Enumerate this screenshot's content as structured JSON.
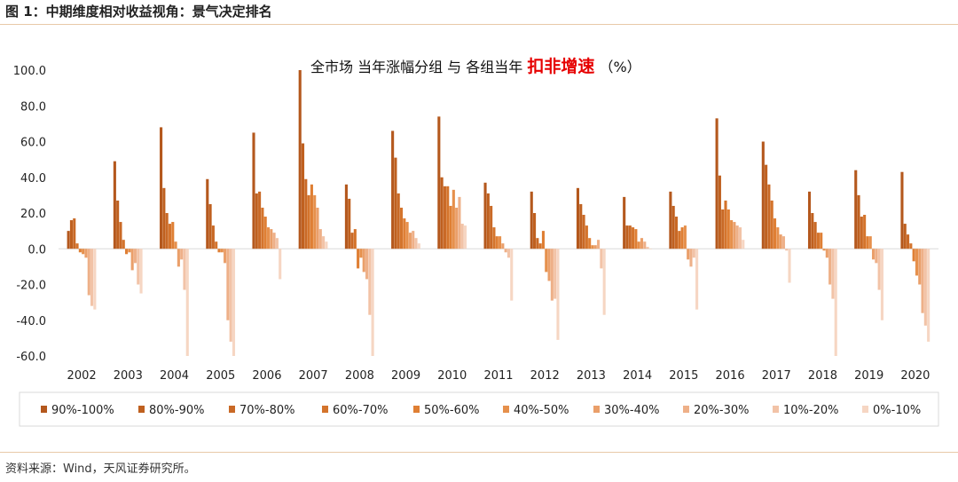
{
  "figure_title": "图 1：中期维度相对收益视角：景气决定排名",
  "source_note": "资料来源：Wind，天风证券研究所。",
  "subtitle": {
    "part1": "全市场  当年涨幅分组  与  各组当年",
    "highlight": "扣非增速",
    "part2": "（%）",
    "highlight_color": "#e60000"
  },
  "chart_data": {
    "type": "bar",
    "categories": [
      "2002",
      "2003",
      "2004",
      "2005",
      "2006",
      "2007",
      "2008",
      "2009",
      "2010",
      "2011",
      "2012",
      "2013",
      "2014",
      "2015",
      "2016",
      "2017",
      "2018",
      "2019",
      "2020"
    ],
    "ylim": [
      -60,
      100
    ],
    "yticks": [
      "100.0",
      "80.0",
      "60.0",
      "40.0",
      "20.0",
      "0.0",
      "-20.0",
      "-40.0",
      "-60.0"
    ],
    "ytick_values": [
      100,
      80,
      60,
      40,
      20,
      0,
      -20,
      -40,
      -60
    ],
    "series": [
      {
        "name": "90%-100%",
        "color": "#b4581d",
        "values": [
          10,
          49,
          68,
          39,
          65,
          100,
          36,
          66,
          74,
          37,
          32,
          34,
          29,
          32,
          73,
          60,
          32,
          44,
          43
        ]
      },
      {
        "name": "80%-90%",
        "color": "#bf601f",
        "values": [
          16,
          27,
          34,
          25,
          31,
          59,
          28,
          51,
          40,
          31,
          20,
          25,
          13,
          24,
          41,
          47,
          20,
          30,
          14
        ]
      },
      {
        "name": "70%-80%",
        "color": "#c96926",
        "values": [
          17,
          15,
          20,
          13,
          32,
          39,
          9,
          31,
          35,
          24,
          6,
          19,
          13,
          18,
          22,
          36,
          15,
          18,
          8
        ]
      },
      {
        "name": "60%-70%",
        "color": "#d4742c",
        "values": [
          3,
          5,
          14,
          4,
          23,
          30,
          11,
          23,
          35,
          12,
          3,
          13,
          12,
          10,
          27,
          27,
          9,
          19,
          3
        ]
      },
      {
        "name": "50%-60%",
        "color": "#df7f34",
        "values": [
          -2,
          -3,
          15,
          -2,
          18,
          36,
          -11,
          17,
          24,
          7,
          10,
          6,
          11,
          12,
          22,
          17,
          9,
          7,
          -7
        ]
      },
      {
        "name": "40%-50%",
        "color": "#e6904c",
        "values": [
          -3,
          -2,
          4,
          -2,
          12,
          30,
          -5,
          15,
          33,
          7,
          -13,
          2,
          4,
          13,
          16,
          12,
          -1,
          7,
          -15
        ]
      },
      {
        "name": "30%-40%",
        "color": "#ea9f6a",
        "values": [
          -5,
          -12,
          -10,
          -8,
          11,
          23,
          -13,
          9,
          23,
          3,
          -18,
          2,
          6,
          -6,
          15,
          8,
          -5,
          -6,
          -20
        ]
      },
      {
        "name": "20%-30%",
        "color": "#eeb088",
        "values": [
          -26,
          -8,
          -6,
          -40,
          9,
          11,
          -17,
          10,
          29,
          -2,
          -29,
          5,
          4,
          -10,
          13,
          7,
          -20,
          -8,
          -36
        ]
      },
      {
        "name": "10%-20%",
        "color": "#f2c3a7",
        "values": [
          -32,
          -20,
          -23,
          -52,
          6,
          7,
          -37,
          6,
          14,
          -5,
          -28,
          -11,
          1,
          -5,
          12,
          -1,
          -28,
          -23,
          -43
        ]
      },
      {
        "name": "0%-10%",
        "color": "#f6d6c3",
        "values": [
          -34,
          -25,
          -60,
          -60,
          -17,
          4,
          -60,
          3,
          13,
          -29,
          -51,
          -37,
          0,
          -34,
          5,
          -19,
          -60,
          -40,
          -52
        ]
      }
    ],
    "legend_position": "bottom",
    "grid": false
  }
}
